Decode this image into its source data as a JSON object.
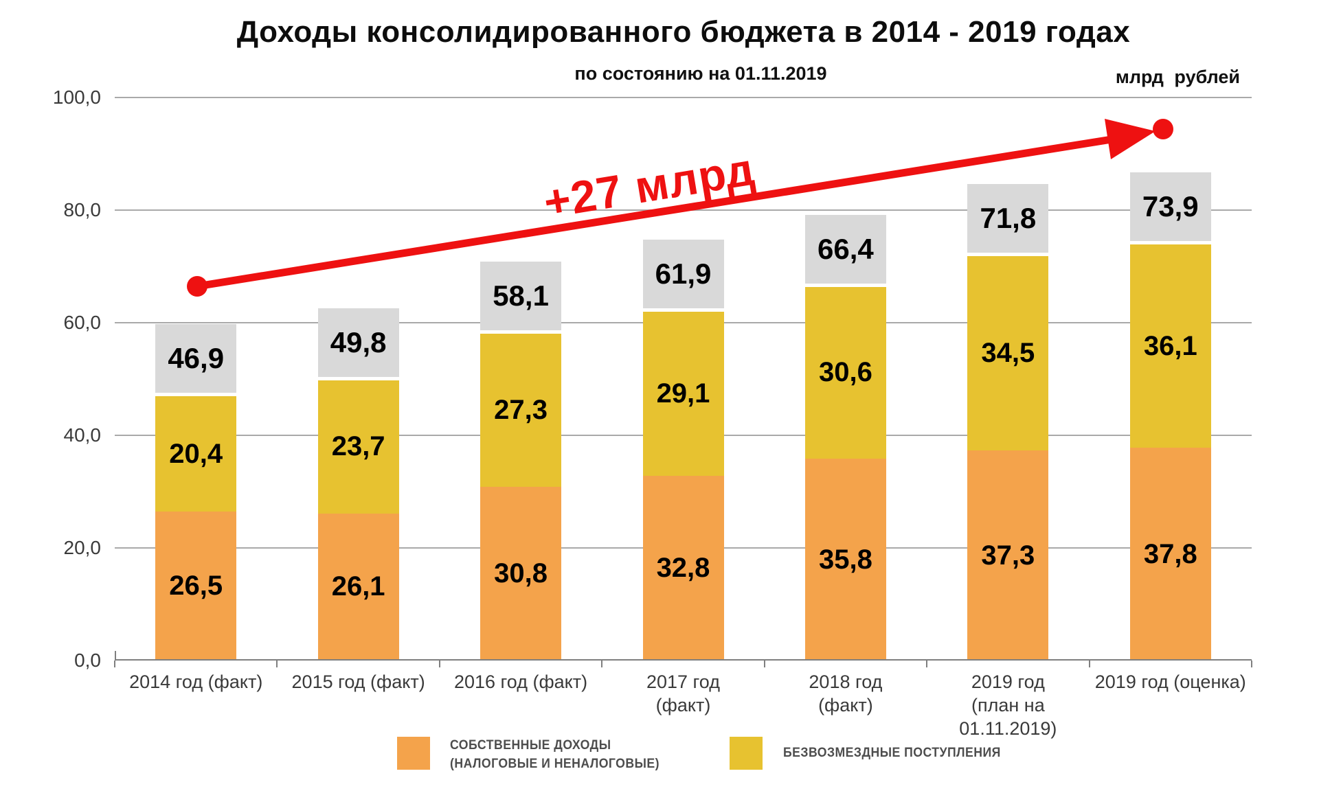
{
  "header": {
    "title": "Доходы консолидированного бюджета в 2014 - 2019 годах",
    "subtitle": "по состоянию на 01.11.2019",
    "units": "млрд рублей"
  },
  "annotation": {
    "text": "+27 млрд",
    "color": "#EE1111"
  },
  "legend": {
    "items": [
      {
        "lines": [
          "СОБСТВЕННЫЕ ДОХОДЫ",
          "(НАЛОГОВЫЕ И НЕНАЛОГОВЫЕ)"
        ],
        "color": "#F4A34B"
      },
      {
        "lines": [
          "БЕЗВОЗМЕЗДНЫЕ ПОСТУПЛЕНИЯ"
        ],
        "color": "#E7C230"
      }
    ]
  },
  "chart_data": {
    "type": "bar",
    "stacked": true,
    "title": "Доходы консолидированного бюджета в 2014 - 2019 годах",
    "subtitle": "по состоянию на 01.11.2019",
    "units": "млрд рублей",
    "categories": [
      [
        "2014 год (факт)"
      ],
      [
        "2015 год (факт)"
      ],
      [
        "2016 год (факт)"
      ],
      [
        "2017 год",
        "(факт)"
      ],
      [
        "2018 год",
        "(факт)"
      ],
      [
        "2019 год",
        "(план на 01.11.2019)"
      ],
      [
        "2019 год (оценка)"
      ]
    ],
    "series": [
      {
        "name": "СОБСТВЕННЫЕ ДОХОДЫ (НАЛОГОВЫЕ И НЕНАЛОГОВЫЕ)",
        "color": "#F4A34B",
        "values": [
          26.5,
          26.1,
          30.8,
          32.8,
          35.8,
          37.3,
          37.8
        ]
      },
      {
        "name": "БЕЗВОЗМЕЗДНЫЕ ПОСТУПЛЕНИЯ",
        "color": "#E7C230",
        "values": [
          20.4,
          23.7,
          27.3,
          29.1,
          30.6,
          34.5,
          36.1
        ]
      }
    ],
    "totals": [
      46.9,
      49.8,
      58.1,
      61.9,
      66.4,
      71.8,
      73.9
    ],
    "total_box_color": "#D9D9D9",
    "ylim": [
      0,
      100
    ],
    "ytick_step": 20,
    "ytick_labels": [
      "0,0",
      "20,0",
      "40,0",
      "60,0",
      "80,0",
      "100,0"
    ],
    "grid": true,
    "legend_position": "bottom",
    "decimal_separator": ","
  }
}
